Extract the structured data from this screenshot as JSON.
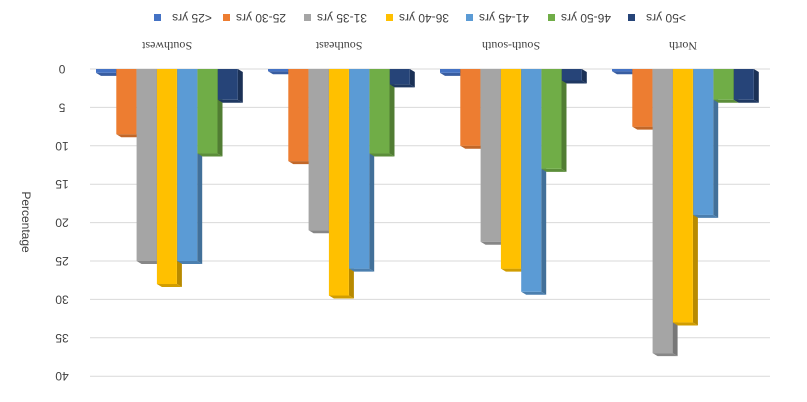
{
  "chart_data": {
    "type": "bar",
    "orientation": "rendered upside-down (inverted / mirrored)",
    "categories": [
      "Southwest",
      "Southeast",
      "South-south",
      "North"
    ],
    "series": [
      {
        "name": "<25 yrs",
        "color": "#4472C4",
        "values": [
          0.5,
          0.3,
          0.5,
          0.3
        ]
      },
      {
        "name": "25-30 yrs",
        "color": "#ED7D31",
        "values": [
          8.5,
          12,
          10,
          7.5
        ]
      },
      {
        "name": "31-35 yrs",
        "color": "#A5A5A5",
        "values": [
          25,
          21,
          22.5,
          37
        ]
      },
      {
        "name": "36-40 yrs",
        "color": "#FFC000",
        "values": [
          28,
          29.5,
          26,
          33
        ]
      },
      {
        "name": "41-45 yrs",
        "color": "#5B9BD5",
        "values": [
          25,
          26,
          29,
          19
        ]
      },
      {
        "name": "46-50 yrs",
        "color": "#70AD47",
        "values": [
          11,
          11,
          13,
          4
        ]
      },
      {
        "name": ">50 yrs",
        "color": "#264478",
        "values": [
          4,
          2,
          1.5,
          4
        ]
      }
    ],
    "ylabel": "Percentage",
    "yticks": [
      "0",
      "5",
      "10",
      "15",
      "20",
      "25",
      "30",
      "35",
      "40"
    ],
    "ylim": [
      0,
      40
    ],
    "grid": true,
    "legend_position": "top",
    "style": "3d-clustered-column"
  }
}
